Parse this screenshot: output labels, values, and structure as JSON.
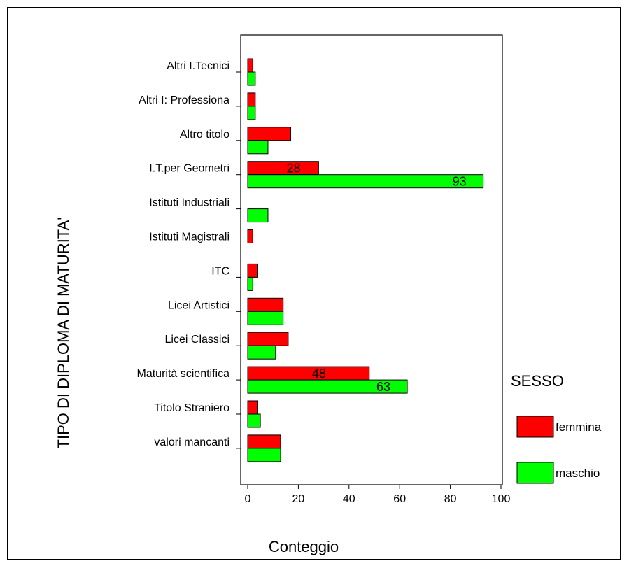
{
  "chart_data": {
    "type": "bar",
    "orientation": "horizontal",
    "title": "",
    "xlabel": "Conteggio",
    "ylabel": "TIPO DI DIPLOMA DI MATURITA'",
    "xlim": [
      0,
      100
    ],
    "xticks": [
      0,
      20,
      40,
      60,
      80,
      100
    ],
    "grid": false,
    "legend_position": "right",
    "legend_title": "SESSO",
    "categories": [
      "Altri I.Tecnici",
      "Altri I: Professiona",
      "Altro titolo",
      "I.T.per Geometri",
      "Istituti Industriali",
      "Istituti Magistrali",
      "ITC",
      "Licei Artistici",
      "Licei Classici",
      "Maturità scientifica",
      "Titolo Straniero",
      "valori mancanti"
    ],
    "series": [
      {
        "name": "femmina",
        "color": "#ff0000",
        "values": [
          2,
          3,
          17,
          28,
          0,
          2,
          4,
          14,
          16,
          48,
          4,
          13
        ]
      },
      {
        "name": "maschio",
        "color": "#00ff00",
        "values": [
          3,
          3,
          8,
          93,
          8,
          0,
          2,
          14,
          11,
          63,
          5,
          13
        ]
      }
    ],
    "data_labels": [
      {
        "series": 0,
        "category": 3,
        "text": "28"
      },
      {
        "series": 1,
        "category": 3,
        "text": "93"
      },
      {
        "series": 0,
        "category": 9,
        "text": "48"
      },
      {
        "series": 1,
        "category": 9,
        "text": "63"
      }
    ]
  }
}
